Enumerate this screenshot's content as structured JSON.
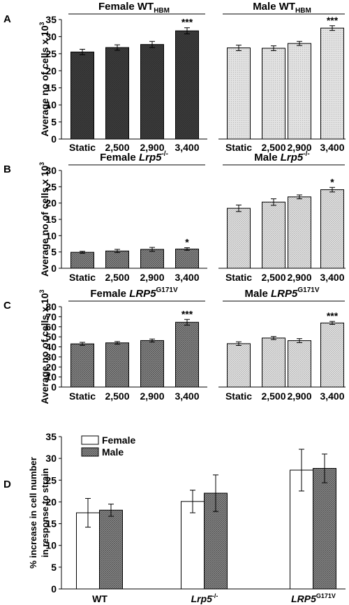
{
  "chart_data": [
    {
      "panel": "A",
      "type": "bar",
      "ylabel": "Average no of cells x 10",
      "ylabel_sup": "3",
      "ylim": [
        0,
        35
      ],
      "yticks": [
        0,
        5,
        10,
        15,
        20,
        25,
        30,
        35
      ],
      "categories": [
        "Static",
        "2,500",
        "2,900",
        "3,400"
      ],
      "series": [
        {
          "name": "Female WT",
          "name_sub": "HBM",
          "style": "dark",
          "values": [
            25.5,
            26.8,
            27.7,
            31.7
          ],
          "errors": [
            0.8,
            0.8,
            0.9,
            0.9
          ],
          "marks": [
            "",
            "",
            "",
            "***"
          ]
        },
        {
          "name": "Male WT",
          "name_sub": "HBM",
          "style": "light",
          "values": [
            26.7,
            26.6,
            28.0,
            32.5
          ],
          "errors": [
            0.8,
            0.7,
            0.6,
            0.7
          ],
          "marks": [
            "",
            "",
            "",
            "***"
          ]
        }
      ]
    },
    {
      "panel": "B",
      "type": "bar",
      "ylabel": "Average no of cells x 10",
      "ylabel_sup": "3",
      "ylim": [
        0,
        30
      ],
      "yticks": [
        0,
        5,
        10,
        15,
        20,
        25,
        30
      ],
      "categories": [
        "Static",
        "2,500",
        "2,900",
        "3,400"
      ],
      "series": [
        {
          "name": "Female ",
          "name_italic": "Lrp5",
          "name_sup": "-/-",
          "style": "hatch",
          "values": [
            4.9,
            5.3,
            5.8,
            5.9
          ],
          "errors": [
            0.3,
            0.5,
            0.6,
            0.4
          ],
          "marks": [
            "",
            "",
            "",
            "*"
          ]
        },
        {
          "name": "Male ",
          "name_italic": "Lrp5",
          "name_sup": "-/-",
          "style": "lighthatch",
          "values": [
            18.4,
            20.3,
            21.9,
            24.1
          ],
          "errors": [
            1.0,
            1.0,
            0.6,
            0.7
          ],
          "marks": [
            "",
            "",
            "",
            "*"
          ]
        }
      ]
    },
    {
      "panel": "C",
      "type": "bar",
      "ylabel": "Average no of cells x 10",
      "ylabel_sup": "3",
      "ylim": [
        0,
        80
      ],
      "yticks": [
        0,
        10,
        20,
        30,
        40,
        50,
        60,
        70,
        80
      ],
      "categories": [
        "Static",
        "2,500",
        "2,900",
        "3,400"
      ],
      "series": [
        {
          "name": "Female ",
          "name_italic": "LRP5",
          "name_sup": "G171V",
          "style": "hatch",
          "values": [
            43.0,
            44.0,
            46.3,
            64.5
          ],
          "errors": [
            1.5,
            1.3,
            1.5,
            2.8
          ],
          "marks": [
            "",
            "",
            "",
            "***"
          ]
        },
        {
          "name": "Male ",
          "name_italic": "LRP5",
          "name_sup": "G171V",
          "style": "lighthatch",
          "values": [
            43.2,
            48.8,
            46.2,
            63.8
          ],
          "errors": [
            1.8,
            1.5,
            2.0,
            1.5
          ],
          "marks": [
            "",
            "",
            "",
            "***"
          ]
        }
      ]
    },
    {
      "panel": "D",
      "type": "bar",
      "ylabel": [
        "% increase in cell number",
        "in response to strain"
      ],
      "ylim": [
        0,
        35
      ],
      "yticks": [
        0,
        5,
        10,
        15,
        20,
        25,
        30,
        35
      ],
      "groups": [
        {
          "label": "WT",
          "italic": false,
          "sup": ""
        },
        {
          "label": "Lrp5",
          "italic": true,
          "sup": "-/-"
        },
        {
          "label": "LRP5",
          "italic": true,
          "sup": "G171V"
        }
      ],
      "legend_position": "top-left",
      "series": [
        {
          "name": "Female",
          "style": "white",
          "values": [
            17.5,
            20.1,
            27.3
          ],
          "errors": [
            3.3,
            2.6,
            4.8
          ]
        },
        {
          "name": "Male",
          "style": "hatch",
          "values": [
            18.1,
            22.0,
            27.7
          ],
          "errors": [
            1.4,
            4.2,
            3.3
          ]
        }
      ]
    }
  ]
}
